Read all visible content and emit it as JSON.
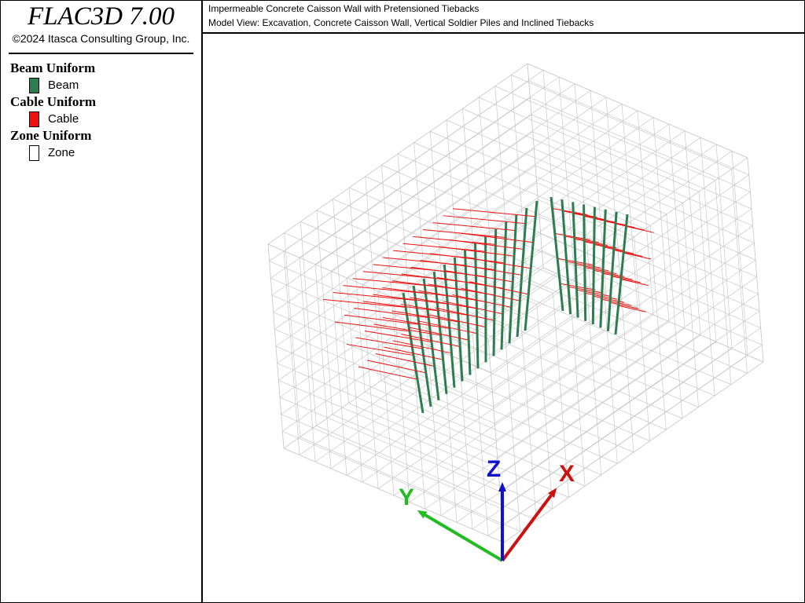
{
  "header": {
    "title": "FLAC3D 7.00",
    "copyright": "©2024 Itasca Consulting Group, Inc."
  },
  "legend": [
    {
      "title": "Beam Uniform",
      "item": "Beam",
      "color": "#2e7d4f"
    },
    {
      "title": "Cable Uniform",
      "item": "Cable",
      "color": "#ee1111"
    },
    {
      "title": "Zone Uniform",
      "item": "Zone",
      "color": "#ffffff"
    }
  ],
  "view_title": [
    "Impermeable Concrete Caisson Wall with Pretensioned Tiebacks",
    "Model View: Excavation, Concrete Caisson Wall, Vertical Soldier Piles and Inclined Tiebacks"
  ],
  "axes": {
    "x": "X",
    "y": "Y",
    "z": "Z"
  }
}
